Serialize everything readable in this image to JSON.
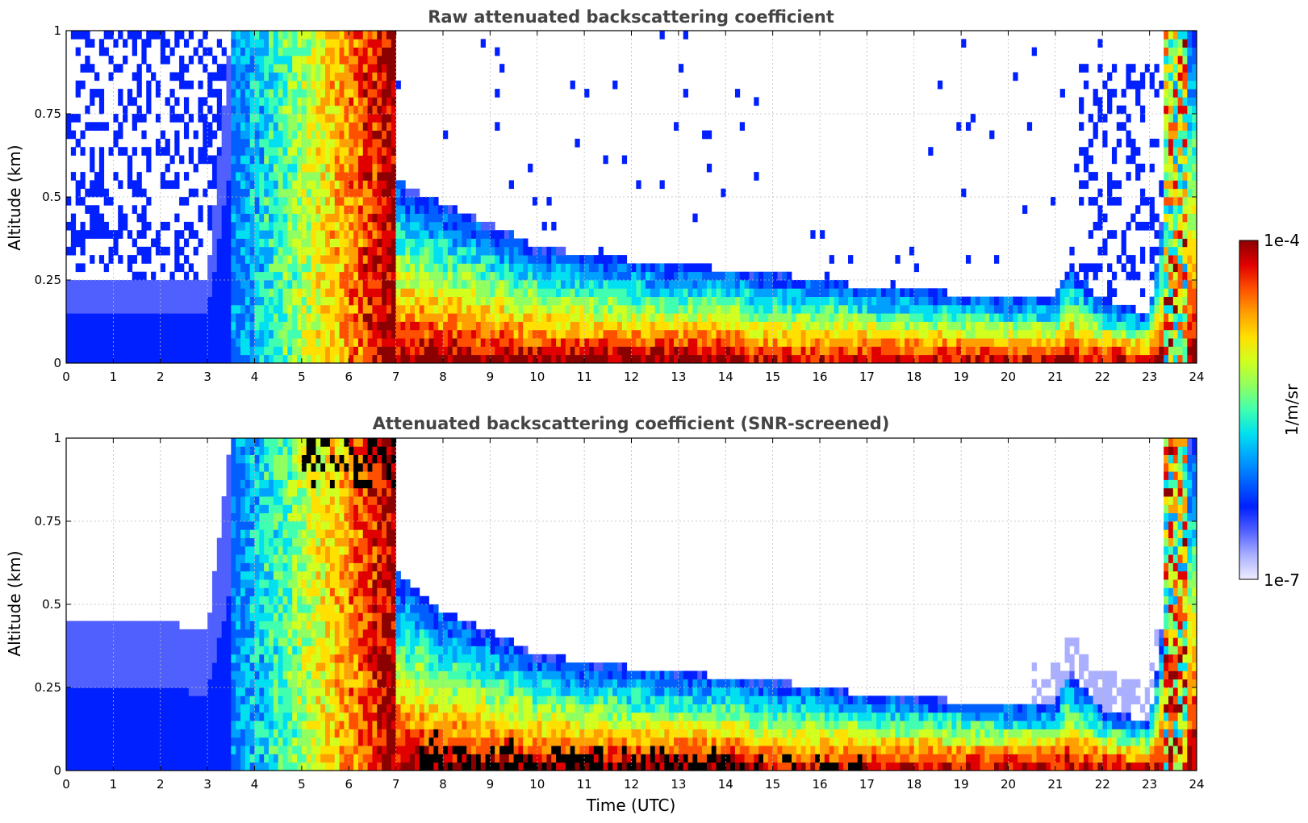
{
  "chart_data": [
    {
      "type": "heatmap",
      "title": "Raw attenuated backscattering coefficient",
      "xlabel": "",
      "ylabel": "Altitude (km)",
      "xlim": [
        0,
        24
      ],
      "ylim": [
        0,
        1
      ],
      "xticks": [
        "0",
        "1",
        "2",
        "3",
        "4",
        "5",
        "6",
        "7",
        "8",
        "9",
        "10",
        "11",
        "12",
        "13",
        "14",
        "15",
        "16",
        "17",
        "18",
        "19",
        "20",
        "21",
        "22",
        "23",
        "24"
      ],
      "yticks": [
        "0",
        "0.25",
        "0.5",
        "0.75",
        "1"
      ],
      "grid": true,
      "snr_screened": false,
      "series": [
        {
          "name": "",
          "time_utc": [
            0,
            1,
            2,
            3,
            3.5,
            4,
            5,
            6,
            7,
            8,
            9,
            10,
            11,
            12,
            13,
            14,
            15,
            16,
            17,
            18,
            19,
            20,
            21,
            21.3,
            22,
            23,
            23.8
          ],
          "boundary_layer_top_km": [
            0.25,
            0.25,
            0.25,
            0.25,
            1.0,
            1.0,
            1.0,
            1.0,
            0.55,
            0.48,
            0.42,
            0.35,
            0.33,
            0.31,
            0.3,
            0.28,
            0.27,
            0.25,
            0.23,
            0.22,
            0.21,
            0.2,
            0.2,
            0.3,
            0.18,
            0.15,
            1.0
          ]
        }
      ]
    },
    {
      "type": "heatmap",
      "title": "Attenuated backscattering coefficient (SNR-screened)",
      "xlabel": "Time (UTC)",
      "ylabel": "Altitude (km)",
      "xlim": [
        0,
        24
      ],
      "ylim": [
        0,
        1
      ],
      "xticks": [
        "0",
        "1",
        "2",
        "3",
        "4",
        "5",
        "6",
        "7",
        "8",
        "9",
        "10",
        "11",
        "12",
        "13",
        "14",
        "15",
        "16",
        "17",
        "18",
        "19",
        "20",
        "21",
        "22",
        "23",
        "24"
      ],
      "yticks": [
        "0",
        "0.25",
        "0.5",
        "0.75",
        "1"
      ],
      "grid": true,
      "snr_screened": true,
      "series": [
        {
          "name": "",
          "time_utc": [
            0,
            1,
            2,
            3,
            3.5,
            4,
            5,
            6,
            7,
            8,
            9,
            10,
            11,
            12,
            13,
            14,
            15,
            16,
            17,
            18,
            19,
            20,
            21,
            21.3,
            22,
            23,
            23.8
          ],
          "boundary_layer_top_km": [
            0.45,
            0.45,
            0.45,
            0.42,
            1.0,
            1.0,
            1.0,
            1.0,
            0.6,
            0.48,
            0.42,
            0.35,
            0.33,
            0.31,
            0.3,
            0.28,
            0.27,
            0.25,
            0.23,
            0.22,
            0.21,
            0.2,
            0.2,
            0.3,
            0.18,
            0.15,
            1.0
          ]
        }
      ]
    }
  ],
  "colorbar": {
    "max_label": "1e-4",
    "min_label": "1e-7",
    "label": "1/m/sr",
    "colormap": "jet",
    "scale": "log",
    "colors": [
      "#eeeeff",
      "#aab0ff",
      "#5060ff",
      "#0020ff",
      "#0060ff",
      "#00a0ff",
      "#00e0f0",
      "#40ffb0",
      "#90ff60",
      "#d0ff20",
      "#ffe000",
      "#ffa000",
      "#ff5000",
      "#e00000",
      "#8b0000"
    ]
  }
}
